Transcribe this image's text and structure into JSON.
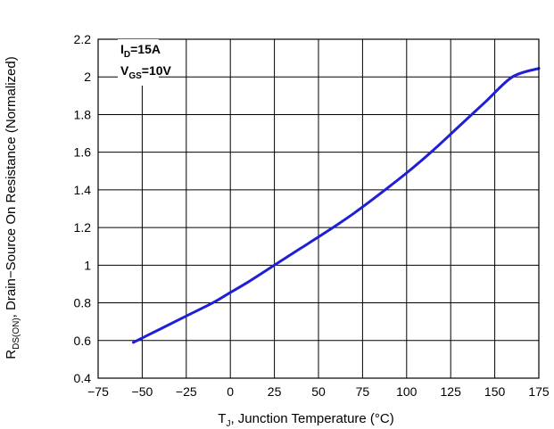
{
  "chart_data": {
    "type": "line",
    "xlabel": {
      "main": "T",
      "sub": "J",
      "rest": ", Junction Temperature (°C)"
    },
    "ylabel": {
      "main": "R",
      "sub": "DS(ON)",
      "rest": ", Drain−Source On Resistance (Normalized)"
    },
    "xlim": [
      -75,
      175
    ],
    "ylim": [
      0.4,
      2.2
    ],
    "x_ticks": [
      -75,
      -50,
      -25,
      0,
      25,
      50,
      75,
      100,
      125,
      150,
      175
    ],
    "x_tick_labels": [
      "−75",
      "−50",
      "−25",
      "0",
      "25",
      "50",
      "75",
      "100",
      "125",
      "150",
      "175"
    ],
    "y_ticks": [
      0.4,
      0.6,
      0.8,
      1,
      1.2,
      1.4,
      1.6,
      1.8,
      2,
      2.2
    ],
    "y_tick_labels": [
      "0.4",
      "0.6",
      "0.8",
      "1",
      "1.2",
      "1.4",
      "1.6",
      "1.8",
      "2",
      "2.2"
    ],
    "grid": true,
    "annotations": [
      {
        "main": "I",
        "sub": "D",
        "rest": "=15A"
      },
      {
        "main": "V",
        "sub": "GS",
        "rest": "=10V"
      }
    ],
    "series": [
      {
        "color": "#1f1fd6",
        "x": [
          -55,
          -40,
          -25,
          -10,
          0,
          10,
          25,
          40,
          55,
          70,
          85,
          100,
          115,
          130,
          145,
          160,
          175
        ],
        "y": [
          0.59,
          0.66,
          0.73,
          0.8,
          0.855,
          0.91,
          1.0,
          1.09,
          1.18,
          1.275,
          1.38,
          1.49,
          1.61,
          1.74,
          1.87,
          2.0,
          2.045
        ]
      }
    ]
  }
}
